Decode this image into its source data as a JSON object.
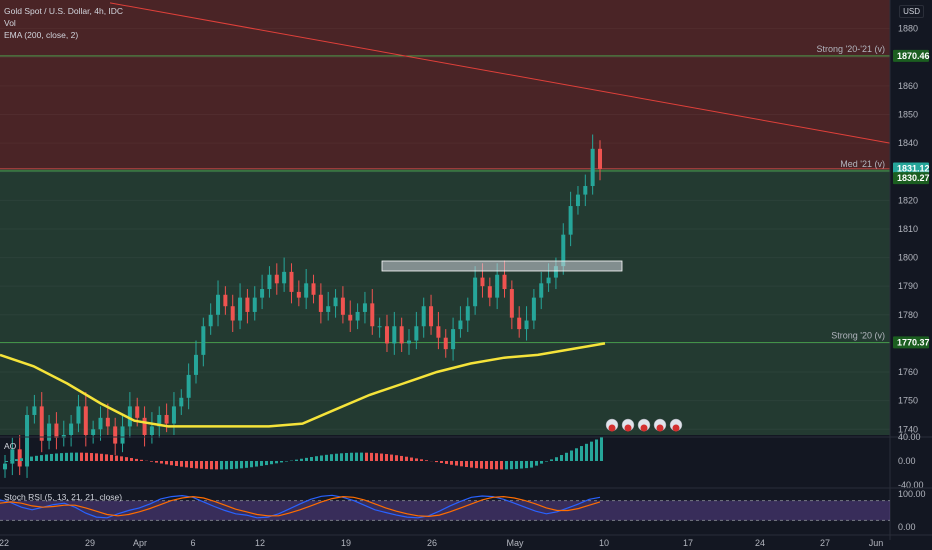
{
  "header": {
    "symbol": "Gold Spot / U.S. Dollar, 4h, IDC",
    "vol": "Vol",
    "ema": "EMA (200, close, 2)",
    "currency": "USD"
  },
  "panes": {
    "ao_label": "AO",
    "stoch_label": "Stoch RSI (5, 13, 21, 21, close)"
  },
  "zones": [
    {
      "name": "Strong '20-'21 (v)",
      "price": 1870.46,
      "label": "1870.46"
    },
    {
      "name": "Med '21 (v)",
      "price": 1830.27,
      "label": "1830.27"
    },
    {
      "name": "Strong '20 (v)",
      "price": 1770.37,
      "label": "1770.37"
    }
  ],
  "current_price": {
    "label": "1831.12",
    "value": 1831.12
  },
  "colors": {
    "background": "#131722",
    "resistance_zone": "#4a2426",
    "support_zone": "#233a31",
    "up_candle": "#26a69a",
    "down_candle": "#ef5350",
    "ema": "#f5e33a",
    "trendline": "#e0403a",
    "level_line": "#4caf50",
    "stoch_k": "#2962ff",
    "stoch_d": "#ff6d00",
    "stoch_band": "#7e57c2"
  },
  "chart_data": [
    {
      "type": "candlestick",
      "title": "Gold Spot / U.S. Dollar, 4h, IDC",
      "ylim": [
        1738,
        1890
      ],
      "price_ticks": [
        1880,
        1870,
        1860,
        1850,
        1840,
        1830,
        1820,
        1810,
        1800,
        1790,
        1780,
        1770,
        1760,
        1750,
        1740
      ],
      "x_ticks": [
        "22",
        "29",
        "Apr",
        "6",
        "12",
        "19",
        "26",
        "May",
        "10",
        "17",
        "24",
        "27",
        "Jun"
      ],
      "ema_200": [
        1766,
        1762,
        1756,
        1749,
        1743,
        1741,
        1741,
        1741,
        1741,
        1742,
        1747,
        1752,
        1756,
        1760,
        1763,
        1765,
        1766,
        1768,
        1770
      ],
      "trendline": [
        1889,
        1840
      ],
      "rectangle": {
        "high": 1798,
        "low": 1796
      },
      "candles_close": [
        1728,
        1733,
        1727,
        1745,
        1748,
        1736,
        1742,
        1737,
        1738,
        1742,
        1748,
        1738,
        1740,
        1744,
        1741,
        1735,
        1741,
        1748,
        1744,
        1738,
        1741,
        1745,
        1742,
        1748,
        1751,
        1759,
        1766,
        1776,
        1780,
        1787,
        1783,
        1778,
        1786,
        1781,
        1786,
        1789,
        1794,
        1791,
        1795,
        1788,
        1786,
        1791,
        1787,
        1781,
        1783,
        1786,
        1780,
        1778,
        1781,
        1784,
        1776,
        1776,
        1770,
        1776,
        1770,
        1771,
        1776,
        1783,
        1776,
        1772,
        1768,
        1775,
        1778,
        1783,
        1793,
        1790,
        1786,
        1794,
        1789,
        1779,
        1775,
        1778,
        1786,
        1791,
        1793,
        1797,
        1808,
        1818,
        1822,
        1825,
        1838,
        1831
      ]
    },
    {
      "type": "bar",
      "title": "AO",
      "ylim": [
        -40,
        40
      ],
      "ticks": [
        40.0,
        0.0,
        -40.0
      ]
    },
    {
      "type": "line",
      "title": "Stoch RSI (5, 13, 21, 21, close)",
      "ylim": [
        0,
        100
      ],
      "ticks": [
        100.0,
        0.0
      ],
      "series": [
        {
          "values": [
            82,
            74,
            60,
            52,
            60,
            68,
            72,
            60,
            42,
            30,
            28,
            40,
            50,
            58,
            70,
            85,
            92,
            95,
            90,
            76,
            62,
            50,
            40,
            36,
            28,
            30,
            40,
            55,
            70,
            84,
            93,
            96,
            90,
            80,
            66,
            52,
            44,
            36,
            30,
            28,
            34,
            48,
            64,
            78,
            90,
            94,
            92,
            84,
            72,
            60,
            48,
            40,
            46,
            58,
            70,
            84,
            90
          ]
        },
        {
          "values": [
            72,
            76,
            72,
            64,
            60,
            62,
            66,
            66,
            58,
            48,
            38,
            34,
            38,
            46,
            56,
            68,
            80,
            88,
            92,
            88,
            78,
            66,
            54,
            46,
            38,
            34,
            34,
            42,
            52,
            64,
            76,
            86,
            92,
            90,
            82,
            70,
            58,
            48,
            40,
            34,
            32,
            36,
            46,
            58,
            70,
            82,
            90,
            92,
            88,
            80,
            70,
            58,
            50,
            50,
            56,
            66,
            76
          ]
        }
      ]
    }
  ]
}
